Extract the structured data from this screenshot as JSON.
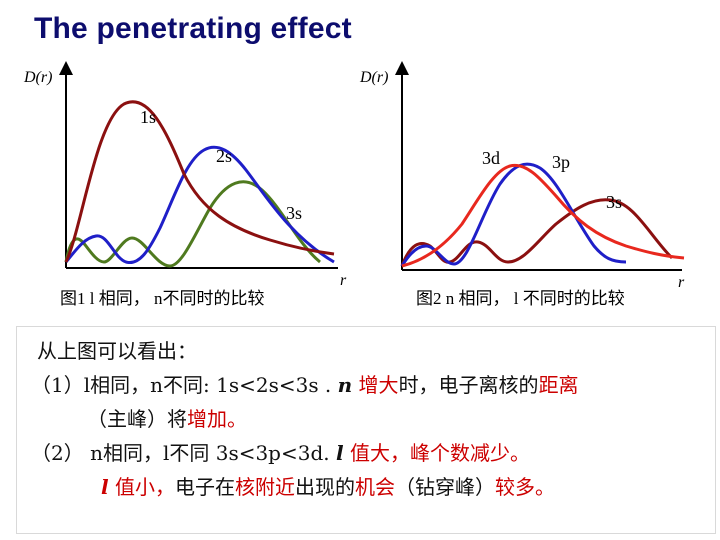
{
  "title": "The penetrating effect",
  "fig1": {
    "y_axis_label": "D(r)",
    "x_axis_label": "r",
    "curve_labels": {
      "s1": "1s",
      "s2": "2s",
      "s3": "3s"
    },
    "caption": "图1   l 相同， n不同时的比较"
  },
  "fig2": {
    "y_axis_label": "D(r)",
    "x_axis_label": "r",
    "curve_labels": {
      "d3": "3d",
      "p3": "3p",
      "s3": "3s"
    },
    "caption": "图2  n 相同， l 不同时的比较"
  },
  "colors": {
    "title": "#0d0d6e",
    "curve_1s": "#8b1010",
    "curve_2s": "#1f1fc8",
    "curve_3s_fig1": "#4f7a1f",
    "curve_3d": "#e8281e",
    "curve_3p": "#1f1fc8",
    "curve_3s_fig2": "#8b1010",
    "highlight": "#cc0000"
  },
  "text": {
    "line0": "从上图可以看出：",
    "line1_prefix": "（1）l相同，n不同: 1s<2s<3s . ",
    "line1_n": "n",
    "line1_red1": " 增大",
    "line1_mid": "时，电子离核的",
    "line1_red2": "距离",
    "line2_a": "（主峰）将",
    "line2_red": "增加。",
    "line3_prefix": "（2） n相同，l不同 3s<3p<3d. ",
    "line3_l": "l",
    "line3_red": " 值大，峰个数减少。",
    "line4_l": "l",
    "line4_red1": " 值小，",
    "line4_a": "电子在",
    "line4_red2": "核附近",
    "line4_b": "出现的",
    "line4_red3": "机会",
    "line4_c": "（钻穿峰）",
    "line4_red4": "较多。"
  }
}
